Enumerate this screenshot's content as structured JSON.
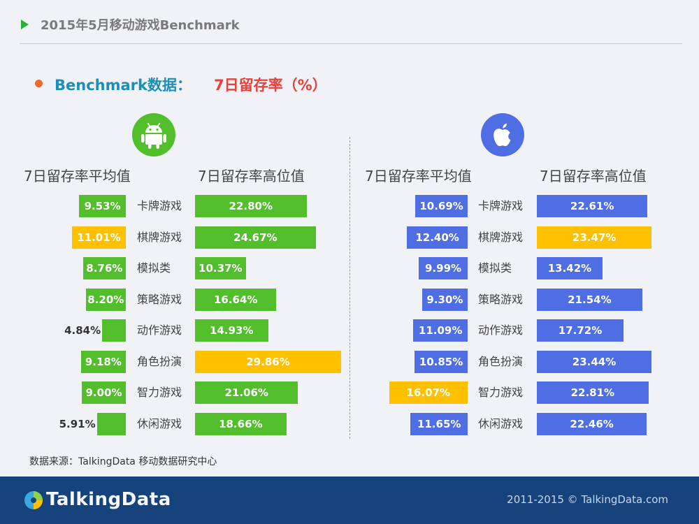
{
  "header": {
    "title": "2015年5月移动游戏Benchmark"
  },
  "subtitle": {
    "prefix": "Benchmark数据：",
    "highlight": "7日留存率（%）"
  },
  "colors": {
    "android": "#52be2c",
    "ios": "#4f6ee3",
    "highlight": "#ffc000"
  },
  "icons": {
    "android": "android-logo-icon",
    "ios": "apple-logo-icon",
    "brand": "talkingdata-logo-icon"
  },
  "chart_data": [
    {
      "type": "bar",
      "platform": "Android",
      "categories": [
        "卡牌游戏",
        "棋牌游戏",
        "模拟类",
        "策略游戏",
        "动作游戏",
        "角色扮演",
        "智力游戏",
        "休闲游戏"
      ],
      "series": [
        {
          "name": "7日留存率平均值",
          "values": [
            9.53,
            11.01,
            8.76,
            8.2,
            4.84,
            9.18,
            9.0,
            5.91
          ],
          "labels": [
            "9.53%",
            "11.01%",
            "8.76%",
            "8.20%",
            "4.84%",
            "9.18%",
            "9.00%",
            "5.91%"
          ],
          "highlight_index": 1
        },
        {
          "name": "7日留存率高位值",
          "values": [
            22.8,
            24.67,
            10.37,
            16.64,
            14.93,
            29.86,
            21.06,
            18.66
          ],
          "labels": [
            "22.80%",
            "24.67%",
            "10.37%",
            "16.64%",
            "14.93%",
            "29.86%",
            "21.06%",
            "18.66%"
          ],
          "highlight_index": 5
        }
      ]
    },
    {
      "type": "bar",
      "platform": "iOS",
      "categories": [
        "卡牌游戏",
        "棋牌游戏",
        "模拟类",
        "策略游戏",
        "动作游戏",
        "角色扮演",
        "智力游戏",
        "休闲游戏"
      ],
      "series": [
        {
          "name": "7日留存率平均值",
          "values": [
            10.69,
            12.4,
            9.99,
            9.3,
            11.09,
            10.85,
            16.07,
            11.65
          ],
          "labels": [
            "10.69%",
            "12.40%",
            "9.99%",
            "9.30%",
            "11.09%",
            "10.85%",
            "16.07%",
            "11.65%"
          ],
          "highlight_index": 6
        },
        {
          "name": "7日留存率高位值",
          "values": [
            22.61,
            23.47,
            13.42,
            21.54,
            17.72,
            23.44,
            22.81,
            22.46
          ],
          "labels": [
            "22.61%",
            "23.47%",
            "13.42%",
            "21.54%",
            "17.72%",
            "23.44%",
            "22.81%",
            "22.46%"
          ],
          "highlight_index": 1
        }
      ]
    }
  ],
  "source": "数据来源：TalkingData 移动数据研究中心",
  "footer": {
    "brand": "TalkingData",
    "copyright": "2011-2015 © TalkingData.com"
  }
}
